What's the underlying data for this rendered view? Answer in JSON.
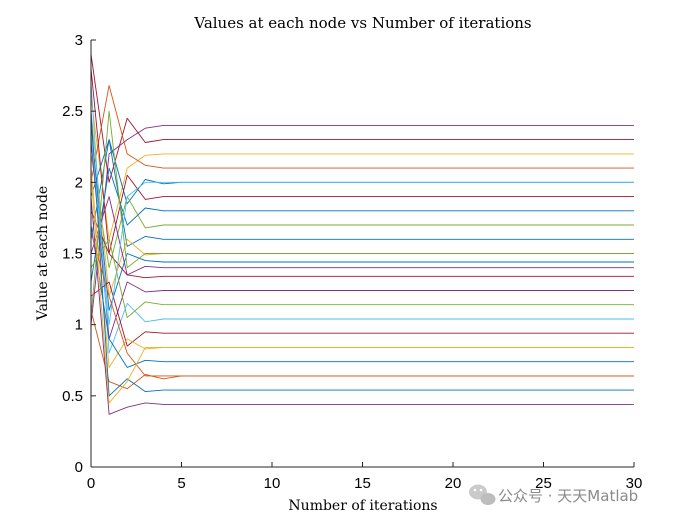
{
  "chart_data": {
    "type": "line",
    "title": "Values at each node vs Number of iterations",
    "xlabel": "Number of iterations",
    "ylabel": "Value at each node",
    "xlim": [
      0,
      30
    ],
    "ylim": [
      0,
      3
    ],
    "xticks": [
      0,
      5,
      10,
      15,
      20,
      25,
      30
    ],
    "yticks": [
      0,
      0.5,
      1,
      1.5,
      2,
      2.5,
      3
    ],
    "grid": false,
    "legend": "none",
    "palette": [
      "#0072BD",
      "#D95319",
      "#EDB120",
      "#7E2F8E",
      "#77AC30",
      "#4DBEEE",
      "#A2142F"
    ],
    "series": [
      {
        "color": "#7E2F8E",
        "x": [
          0,
          1,
          2,
          3,
          4,
          5,
          30
        ],
        "values": [
          1.0,
          2.2,
          2.3,
          2.38,
          2.4,
          2.4,
          2.4
        ]
      },
      {
        "color": "#A2142F",
        "x": [
          0,
          1,
          2,
          3,
          4,
          30
        ],
        "values": [
          2.9,
          2.0,
          2.45,
          2.28,
          2.3,
          2.3
        ]
      },
      {
        "color": "#EDB120",
        "x": [
          0,
          1,
          2,
          3,
          4,
          30
        ],
        "values": [
          2.6,
          1.6,
          2.1,
          2.19,
          2.2,
          2.2
        ]
      },
      {
        "color": "#D95319",
        "x": [
          0,
          1,
          2,
          3,
          4,
          30
        ],
        "values": [
          2.0,
          2.68,
          2.2,
          2.12,
          2.1,
          2.1
        ]
      },
      {
        "color": "#0072BD",
        "x": [
          0,
          1,
          2,
          3,
          4,
          5,
          6,
          30
        ],
        "values": [
          1.6,
          2.3,
          1.85,
          2.02,
          1.99,
          2.0,
          2.0,
          2.0
        ]
      },
      {
        "color": "#A2142F",
        "x": [
          0,
          1,
          2,
          3,
          4,
          30
        ],
        "values": [
          2.8,
          1.5,
          2.05,
          1.88,
          1.9,
          1.9
        ]
      },
      {
        "color": "#0072BD",
        "x": [
          0,
          1,
          2,
          3,
          4,
          30
        ],
        "values": [
          1.3,
          2.1,
          1.7,
          1.82,
          1.8,
          1.8
        ]
      },
      {
        "color": "#77AC30",
        "x": [
          0,
          1,
          2,
          3,
          4,
          30
        ],
        "values": [
          2.2,
          1.4,
          1.9,
          1.68,
          1.7,
          1.7
        ]
      },
      {
        "color": "#0072BD",
        "x": [
          0,
          1,
          2,
          3,
          4,
          30
        ],
        "values": [
          1.9,
          2.3,
          1.55,
          1.62,
          1.6,
          1.6
        ]
      },
      {
        "color": "#EDB120",
        "x": [
          0,
          1,
          2,
          3,
          4,
          30
        ],
        "values": [
          2.5,
          1.2,
          1.6,
          1.49,
          1.5,
          1.5
        ]
      },
      {
        "color": "#7E2F8E",
        "x": [
          0,
          1,
          2,
          3,
          4,
          30
        ],
        "values": [
          1.5,
          1.9,
          1.35,
          1.41,
          1.4,
          1.4
        ]
      },
      {
        "color": "#0072BD",
        "x": [
          0,
          1,
          2,
          3,
          4,
          30
        ],
        "values": [
          2.4,
          1.1,
          1.5,
          1.45,
          1.44,
          1.44
        ]
      },
      {
        "color": "#A2142F",
        "x": [
          0,
          1,
          2,
          3,
          4,
          30
        ],
        "values": [
          1.8,
          1.5,
          1.35,
          1.33,
          1.34,
          1.34
        ]
      },
      {
        "color": "#7E2F8E",
        "x": [
          0,
          1,
          2,
          3,
          4,
          30
        ],
        "values": [
          2.3,
          0.9,
          1.3,
          1.23,
          1.24,
          1.24
        ]
      },
      {
        "color": "#77AC30",
        "x": [
          0,
          1,
          2,
          3,
          4,
          30
        ],
        "values": [
          1.4,
          1.6,
          1.05,
          1.16,
          1.14,
          1.14
        ]
      },
      {
        "color": "#4DBEEE",
        "x": [
          0,
          1,
          2,
          3,
          4,
          5,
          30
        ],
        "values": [
          2.7,
          0.8,
          1.15,
          1.02,
          1.04,
          1.04,
          1.04
        ]
      },
      {
        "color": "#A2142F",
        "x": [
          0,
          1,
          2,
          3,
          4,
          30
        ],
        "values": [
          1.2,
          1.3,
          0.85,
          0.95,
          0.94,
          0.94
        ]
      },
      {
        "color": "#EDB120",
        "x": [
          0,
          1,
          2,
          3,
          4,
          30
        ],
        "values": [
          2.1,
          0.7,
          0.9,
          0.83,
          0.84,
          0.84
        ]
      },
      {
        "color": "#0072BD",
        "x": [
          0,
          1,
          2,
          3,
          4,
          30
        ],
        "values": [
          1.7,
          0.9,
          0.7,
          0.75,
          0.74,
          0.74
        ]
      },
      {
        "color": "#D95319",
        "x": [
          0,
          1,
          2,
          3,
          4,
          5,
          6,
          30
        ],
        "values": [
          1.1,
          0.6,
          0.55,
          0.65,
          0.62,
          0.64,
          0.64,
          0.64
        ]
      },
      {
        "color": "#0072BD",
        "x": [
          0,
          1,
          2,
          3,
          4,
          30
        ],
        "values": [
          2.5,
          0.5,
          0.62,
          0.53,
          0.54,
          0.54
        ]
      },
      {
        "color": "#7E2F8E",
        "x": [
          0,
          1,
          2,
          3,
          4,
          30
        ],
        "values": [
          1.9,
          0.37,
          0.42,
          0.45,
          0.44,
          0.44
        ]
      },
      {
        "color": "#77AC30",
        "x": [
          0,
          1,
          2,
          3,
          30
        ],
        "values": [
          1.05,
          2.5,
          1.4,
          1.5,
          1.5
        ]
      },
      {
        "color": "#4DBEEE",
        "x": [
          0,
          1,
          2,
          3,
          30
        ],
        "values": [
          2.35,
          1.0,
          1.9,
          2.0,
          2.0
        ]
      },
      {
        "color": "#D95319",
        "x": [
          0,
          1,
          2,
          3,
          30
        ],
        "values": [
          1.65,
          1.2,
          0.8,
          0.64,
          0.64
        ]
      },
      {
        "color": "#EDB120",
        "x": [
          0,
          1,
          2,
          3,
          30
        ],
        "values": [
          2.05,
          0.45,
          0.6,
          0.84,
          0.84
        ]
      }
    ]
  },
  "watermark": {
    "text": "公众号 · 天天Matlab",
    "icon": "wechat-icon"
  }
}
